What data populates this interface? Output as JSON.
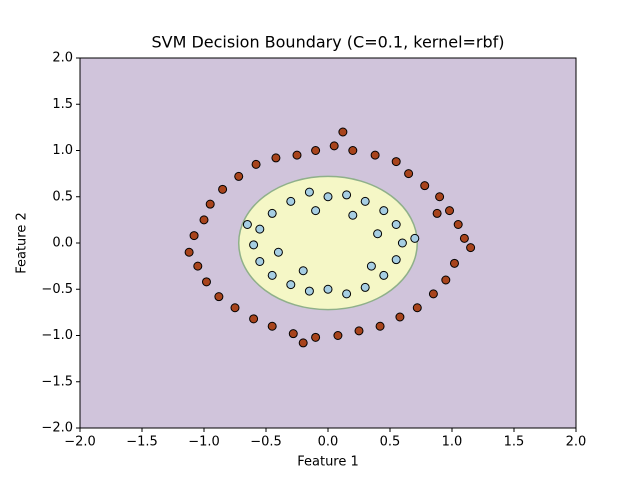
{
  "chart_data": {
    "type": "scatter",
    "title": "SVM Decision Boundary (C=0.1, kernel=rbf)",
    "xlabel": "Feature 1",
    "ylabel": "Feature 2",
    "xlim": [
      -2,
      2
    ],
    "ylim": [
      -2,
      2
    ],
    "xticks": [
      {
        "value": -2,
        "label": "−2.0"
      },
      {
        "value": -1.5,
        "label": "−1.5"
      },
      {
        "value": -1,
        "label": "−1.0"
      },
      {
        "value": -0.5,
        "label": "−0.5"
      },
      {
        "value": 0,
        "label": "0.0"
      },
      {
        "value": 0.5,
        "label": "0.5"
      },
      {
        "value": 1,
        "label": "1.0"
      },
      {
        "value": 1.5,
        "label": "1.5"
      },
      {
        "value": 2,
        "label": "2.0"
      }
    ],
    "yticks": [
      {
        "value": -2,
        "label": "−2.0"
      },
      {
        "value": -1.5,
        "label": "−1.5"
      },
      {
        "value": -1,
        "label": "−1.0"
      },
      {
        "value": -0.5,
        "label": "−0.5"
      },
      {
        "value": 0,
        "label": "0.0"
      },
      {
        "value": 0.5,
        "label": "0.5"
      },
      {
        "value": 1,
        "label": "1.0"
      },
      {
        "value": 1.5,
        "label": "1.5"
      },
      {
        "value": 2,
        "label": "2.0"
      }
    ],
    "background_color": "#d0c4db",
    "region": {
      "center": [
        0,
        0
      ],
      "radius": 0.72,
      "color": "#f5f7c6",
      "edge_color": "#8fb08a"
    },
    "series": [
      {
        "color": "#a8441c",
        "x": [
          1.1,
          1.05,
          0.98,
          0.9,
          0.78,
          0.65,
          0.55,
          0.38,
          0.2,
          0.05,
          -0.1,
          -0.25,
          -0.42,
          -0.58,
          -0.72,
          -0.85,
          -0.95,
          -1.0,
          -1.08,
          -1.12,
          -1.05,
          -0.98,
          -0.88,
          -0.75,
          -0.6,
          -0.45,
          -0.28,
          -0.1,
          0.08,
          0.25,
          0.42,
          0.58,
          0.72,
          0.85,
          0.95,
          1.02,
          1.15,
          0.12,
          -0.2,
          0.88
        ],
        "y": [
          0.05,
          0.2,
          0.35,
          0.5,
          0.62,
          0.75,
          0.88,
          0.95,
          1.0,
          1.05,
          1.0,
          0.95,
          0.92,
          0.85,
          0.72,
          0.58,
          0.42,
          0.25,
          0.08,
          -0.1,
          -0.25,
          -0.42,
          -0.58,
          -0.7,
          -0.82,
          -0.9,
          -0.98,
          -1.02,
          -1.0,
          -0.95,
          -0.9,
          -0.8,
          -0.7,
          -0.55,
          -0.4,
          -0.22,
          -0.05,
          1.2,
          -1.08,
          0.32
        ]
      },
      {
        "color": "#a6cee3",
        "x": [
          0.6,
          0.55,
          0.45,
          0.3,
          0.15,
          0,
          -0.15,
          -0.3,
          -0.45,
          -0.55,
          -0.6,
          -0.55,
          -0.45,
          -0.3,
          -0.15,
          0,
          0.15,
          0.3,
          0.45,
          0.55,
          0.4,
          -0.4,
          0.2,
          -0.2,
          0.7,
          -0.65,
          0.35,
          -0.1
        ],
        "y": [
          0,
          0.2,
          0.35,
          0.45,
          0.52,
          0.5,
          0.55,
          0.45,
          0.32,
          0.15,
          -0.02,
          -0.2,
          -0.35,
          -0.45,
          -0.52,
          -0.5,
          -0.55,
          -0.48,
          -0.35,
          -0.18,
          0.1,
          -0.1,
          0.3,
          -0.3,
          0.05,
          0.2,
          -0.25,
          0.35
        ]
      }
    ]
  }
}
